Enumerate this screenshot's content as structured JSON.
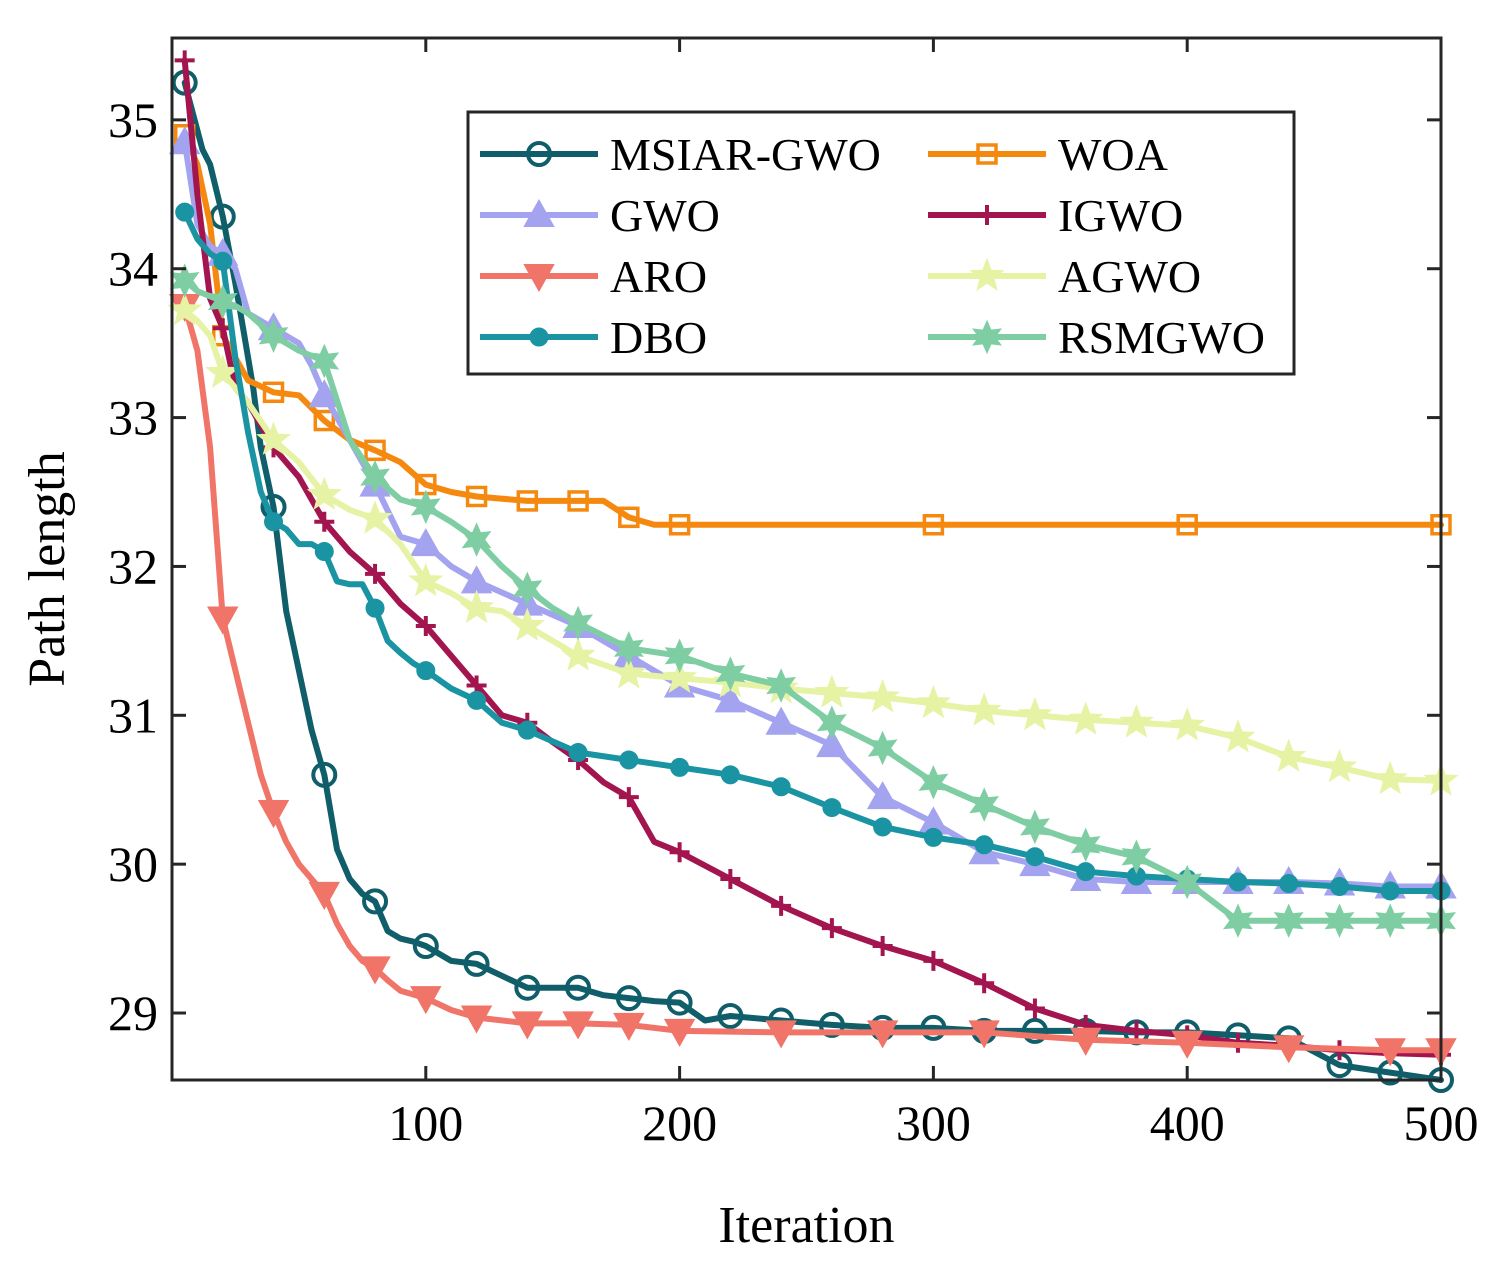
{
  "chart_data": {
    "type": "line",
    "title": "",
    "xlabel": "Iteration",
    "ylabel": "Path length",
    "xlim": [
      0,
      500
    ],
    "ylim": [
      28.55,
      35.55
    ],
    "xticks": [
      100,
      200,
      300,
      400,
      500
    ],
    "yticks": [
      29,
      30,
      31,
      32,
      33,
      34,
      35
    ],
    "xtick_labels": [
      "100",
      "200",
      "300",
      "400",
      "500"
    ],
    "ytick_labels": [
      "29",
      "30",
      "31",
      "32",
      "33",
      "34",
      "35"
    ],
    "legend_position": "top-right",
    "grid": false,
    "series": [
      {
        "name": "MSIAR-GWO",
        "color": "#0f5e6a",
        "marker": "circle",
        "x": [
          5,
          12,
          15,
          20,
          25,
          28,
          32,
          35,
          40,
          45,
          50,
          55,
          60,
          65,
          70,
          75,
          80,
          85,
          90,
          95,
          100,
          110,
          120,
          130,
          140,
          150,
          160,
          170,
          180,
          190,
          200,
          210,
          220,
          240,
          260,
          280,
          300,
          320,
          340,
          360,
          380,
          400,
          420,
          440,
          460,
          480,
          500
        ],
        "y": [
          35.25,
          34.8,
          34.7,
          34.35,
          33.9,
          33.6,
          33.2,
          32.8,
          32.4,
          31.7,
          31.3,
          30.9,
          30.6,
          30.1,
          29.9,
          29.8,
          29.75,
          29.55,
          29.5,
          29.48,
          29.45,
          29.35,
          29.33,
          29.25,
          29.17,
          29.17,
          29.17,
          29.12,
          29.1,
          29.08,
          29.07,
          28.95,
          28.98,
          28.95,
          28.92,
          28.9,
          28.9,
          28.88,
          28.88,
          28.88,
          28.87,
          28.87,
          28.85,
          28.83,
          28.65,
          28.6,
          28.55
        ]
      },
      {
        "name": "WOA",
        "color": "#f5890f",
        "marker": "square",
        "x": [
          5,
          10,
          15,
          20,
          25,
          30,
          40,
          50,
          60,
          70,
          80,
          90,
          100,
          110,
          120,
          140,
          160,
          170,
          180,
          190,
          200,
          250,
          300,
          350,
          400,
          450,
          500
        ],
        "y": [
          34.9,
          34.7,
          34.3,
          33.55,
          33.4,
          33.25,
          33.17,
          33.15,
          32.98,
          32.85,
          32.78,
          32.7,
          32.55,
          32.5,
          32.47,
          32.44,
          32.44,
          32.44,
          32.33,
          32.28,
          32.28,
          32.28,
          32.28,
          32.28,
          32.28,
          32.28,
          32.28
        ]
      },
      {
        "name": "GWO",
        "color": "#a3a3ef",
        "marker": "triangle-up",
        "x": [
          5,
          10,
          15,
          20,
          25,
          30,
          40,
          50,
          55,
          60,
          70,
          80,
          90,
          100,
          110,
          120,
          140,
          160,
          180,
          200,
          220,
          240,
          260,
          280,
          300,
          320,
          340,
          360,
          380,
          400,
          420,
          440,
          460,
          480,
          500
        ],
        "y": [
          34.85,
          34.3,
          34.15,
          34.1,
          34.0,
          33.7,
          33.6,
          33.5,
          33.35,
          33.15,
          32.85,
          32.55,
          32.2,
          32.15,
          32.0,
          31.9,
          31.75,
          31.6,
          31.4,
          31.2,
          31.1,
          30.95,
          30.8,
          30.45,
          30.28,
          30.08,
          30.0,
          29.9,
          29.88,
          29.88,
          29.88,
          29.88,
          29.87,
          29.85,
          29.85
        ]
      },
      {
        "name": "IGWO",
        "color": "#a3154f",
        "marker": "plus",
        "x": [
          5,
          10,
          15,
          20,
          25,
          30,
          40,
          50,
          60,
          70,
          80,
          90,
          100,
          110,
          120,
          130,
          140,
          150,
          160,
          170,
          180,
          190,
          200,
          220,
          240,
          260,
          280,
          300,
          320,
          340,
          360,
          380,
          400,
          420,
          440,
          460,
          480,
          500
        ],
        "y": [
          35.4,
          34.5,
          33.8,
          33.6,
          33.2,
          33.1,
          32.8,
          32.6,
          32.3,
          32.1,
          31.95,
          31.75,
          31.6,
          31.4,
          31.2,
          31.0,
          30.95,
          30.82,
          30.7,
          30.55,
          30.45,
          30.15,
          30.08,
          29.9,
          29.72,
          29.57,
          29.45,
          29.35,
          29.2,
          29.03,
          28.92,
          28.88,
          28.85,
          28.8,
          28.78,
          28.75,
          28.73,
          28.72
        ]
      },
      {
        "name": "ARO",
        "color": "#f07468",
        "marker": "triangle-down",
        "x": [
          5,
          10,
          15,
          20,
          25,
          30,
          35,
          40,
          45,
          50,
          55,
          60,
          65,
          70,
          75,
          80,
          85,
          90,
          100,
          110,
          120,
          140,
          160,
          180,
          200,
          240,
          280,
          320,
          360,
          400,
          440,
          480,
          500
        ],
        "y": [
          33.75,
          33.45,
          32.8,
          31.65,
          31.3,
          30.95,
          30.6,
          30.35,
          30.15,
          30.0,
          29.9,
          29.8,
          29.6,
          29.45,
          29.35,
          29.3,
          29.22,
          29.15,
          29.1,
          29.02,
          28.97,
          28.93,
          28.93,
          28.92,
          28.88,
          28.87,
          28.87,
          28.87,
          28.82,
          28.8,
          28.77,
          28.75,
          28.75
        ]
      },
      {
        "name": "AGWO",
        "color": "#e6f2a4",
        "marker": "star5",
        "x": [
          5,
          10,
          15,
          20,
          25,
          30,
          40,
          50,
          60,
          70,
          80,
          90,
          100,
          110,
          120,
          130,
          140,
          150,
          160,
          180,
          200,
          220,
          240,
          260,
          280,
          300,
          320,
          340,
          360,
          380,
          400,
          420,
          440,
          460,
          480,
          500
        ],
        "y": [
          33.72,
          33.65,
          33.55,
          33.3,
          33.2,
          33.1,
          32.85,
          32.7,
          32.48,
          32.38,
          32.32,
          32.15,
          31.9,
          31.82,
          31.72,
          31.7,
          31.6,
          31.5,
          31.4,
          31.28,
          31.25,
          31.22,
          31.18,
          31.15,
          31.12,
          31.08,
          31.03,
          31.0,
          30.97,
          30.95,
          30.93,
          30.85,
          30.72,
          30.65,
          30.57,
          30.56
        ]
      },
      {
        "name": "DBO",
        "color": "#1a94a2",
        "marker": "dot",
        "x": [
          5,
          10,
          15,
          20,
          25,
          30,
          35,
          40,
          45,
          50,
          55,
          60,
          65,
          70,
          75,
          80,
          85,
          90,
          95,
          100,
          110,
          120,
          130,
          140,
          160,
          180,
          200,
          220,
          240,
          260,
          280,
          300,
          320,
          340,
          360,
          380,
          400,
          420,
          440,
          460,
          480,
          500
        ],
        "y": [
          34.38,
          34.2,
          34.1,
          34.05,
          33.4,
          32.9,
          32.5,
          32.3,
          32.25,
          32.15,
          32.15,
          32.1,
          31.9,
          31.88,
          31.88,
          31.72,
          31.5,
          31.42,
          31.35,
          31.3,
          31.18,
          31.1,
          30.95,
          30.9,
          30.75,
          30.7,
          30.65,
          30.6,
          30.52,
          30.38,
          30.25,
          30.18,
          30.13,
          30.05,
          29.95,
          29.92,
          29.9,
          29.88,
          29.87,
          29.85,
          29.82,
          29.82
        ]
      },
      {
        "name": "RSMGWO",
        "color": "#7fcea3",
        "marker": "star6",
        "x": [
          5,
          10,
          20,
          25,
          30,
          40,
          50,
          60,
          70,
          80,
          90,
          100,
          110,
          120,
          130,
          140,
          150,
          160,
          180,
          200,
          220,
          240,
          260,
          280,
          300,
          320,
          340,
          360,
          380,
          400,
          420,
          440,
          460,
          480,
          500
        ],
        "y": [
          33.92,
          33.85,
          33.78,
          33.75,
          33.7,
          33.55,
          33.45,
          33.38,
          32.85,
          32.6,
          32.45,
          32.4,
          32.3,
          32.18,
          32.0,
          31.85,
          31.72,
          31.62,
          31.45,
          31.4,
          31.28,
          31.2,
          30.95,
          30.78,
          30.55,
          30.4,
          30.25,
          30.13,
          30.05,
          29.88,
          29.62,
          29.62,
          29.62,
          29.62,
          29.62
        ]
      }
    ]
  }
}
